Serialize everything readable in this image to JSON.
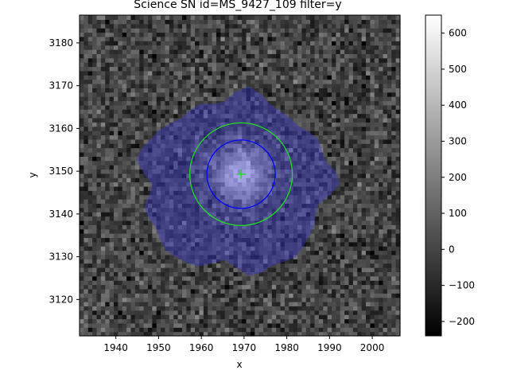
{
  "chart_data": {
    "type": "heatmap",
    "title": "Science SN id=MS_9427_109 filter=y",
    "xlabel": "x",
    "ylabel": "y",
    "xlim": [
      1931.5,
      2006.5
    ],
    "ylim": [
      3111.5,
      3186.5
    ],
    "xticks": [
      1940,
      1950,
      1960,
      1970,
      1980,
      1990,
      2000
    ],
    "yticks": [
      3120,
      3130,
      3140,
      3150,
      3160,
      3170,
      3180
    ],
    "colormap": "gray",
    "colorbar": {
      "vmin": -240,
      "vmax": 650,
      "ticks": [
        -200,
        -100,
        0,
        100,
        200,
        300,
        400,
        500,
        600
      ]
    },
    "background_noise_sigma": 90,
    "source": {
      "x": 1969.3,
      "y": 3149.3,
      "peak": 620,
      "sigma": 4.5
    },
    "mask": {
      "center_x": 1968.0,
      "center_y": 3147.0,
      "radius": 22,
      "color": "#3a3ac8",
      "opacity": 0.45
    },
    "apertures": [
      {
        "name": "inner",
        "x": 1969.3,
        "y": 3149.3,
        "radius": 8,
        "color": "#0000ff"
      },
      {
        "name": "outer",
        "x": 1969.3,
        "y": 3149.3,
        "radius": 12,
        "color": "#22dd22"
      }
    ],
    "marker": {
      "symbol": "+",
      "x": 1969.3,
      "y": 3149.3,
      "color": "#22dd22"
    }
  }
}
